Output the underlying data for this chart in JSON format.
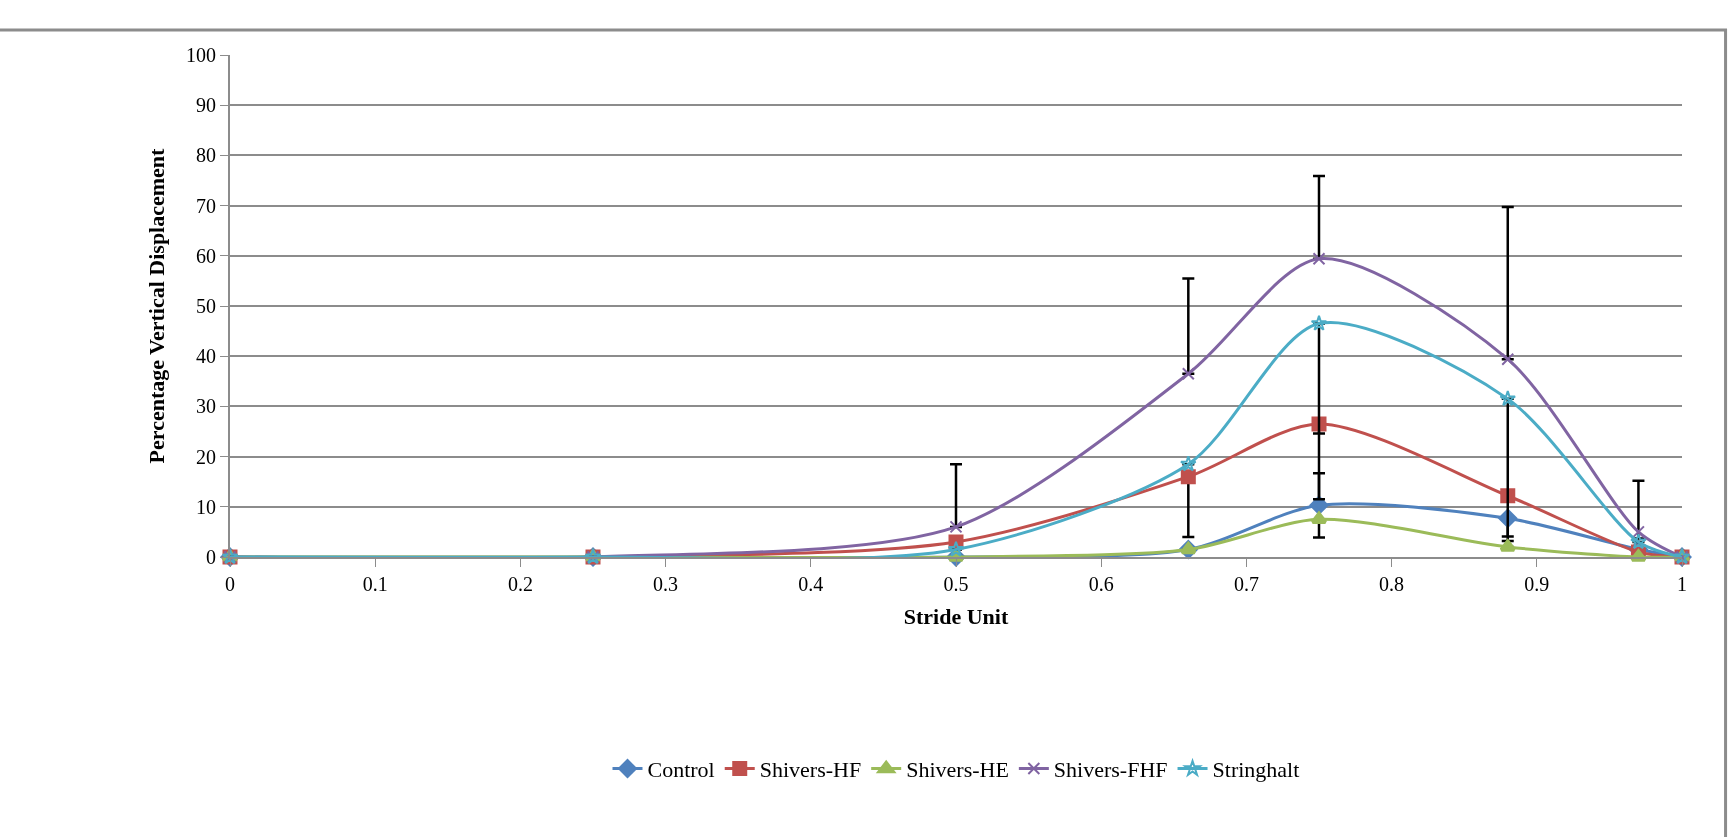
{
  "chart_data": {
    "type": "line",
    "xlabel": "Stride Unit",
    "ylabel": "Percentage Vertical Displacement",
    "x": [
      0,
      0.25,
      0.5,
      0.66,
      0.75,
      0.88,
      0.97,
      1
    ],
    "xlim": [
      0,
      1
    ],
    "xticks": [
      0,
      0.1,
      0.2,
      0.3,
      0.4,
      0.5,
      0.6,
      0.7,
      0.8,
      0.9,
      1
    ],
    "ylim": [
      0,
      100
    ],
    "yticks": [
      0,
      10,
      20,
      30,
      40,
      50,
      60,
      70,
      80,
      90,
      100
    ],
    "grid": "y",
    "legend": "bottom",
    "line_style": "solid",
    "series": [
      {
        "name": "Control",
        "color": "#4f81bd",
        "marker": "diamond",
        "values": [
          0,
          0,
          0,
          1.5,
          10.3,
          7.7,
          1.5,
          0
        ],
        "errors": [
          null,
          null,
          null,
          null,
          [
            10.3,
            16.7
          ],
          [
            3.2,
            7.7
          ],
          null,
          null
        ]
      },
      {
        "name": "Shivers-HF",
        "color": "#c0504d",
        "marker": "square",
        "values": [
          0,
          0,
          3,
          16,
          26.5,
          12.2,
          1,
          0
        ],
        "errors": [
          null,
          null,
          null,
          [
            4,
            16
          ],
          [
            11.5,
            26.5
          ],
          null,
          null,
          null
        ]
      },
      {
        "name": "Shivers-HE",
        "color": "#9bbb59",
        "marker": "triangle",
        "values": [
          0,
          0,
          0,
          1.5,
          7.5,
          2,
          0,
          0
        ],
        "errors": [
          null,
          null,
          null,
          null,
          [
            3.9,
            7.5
          ],
          null,
          null,
          null
        ]
      },
      {
        "name": "Shivers-FHF",
        "color": "#8064a2",
        "marker": "cross",
        "values": [
          0,
          0,
          6,
          36.5,
          59.4,
          39.4,
          5,
          0
        ],
        "errors": [
          null,
          null,
          [
            6,
            18.5
          ],
          [
            36.5,
            55.5
          ],
          [
            59.4,
            75.9
          ],
          [
            39.4,
            69.7
          ],
          [
            3.7,
            15.2
          ],
          null
        ]
      },
      {
        "name": "Stringhalt",
        "color": "#4bacc6",
        "marker": "star",
        "values": [
          0,
          0,
          1.5,
          18.5,
          46.5,
          31.5,
          3,
          0
        ],
        "errors": [
          null,
          null,
          null,
          null,
          [
            24.6,
            46.5
          ],
          [
            4.1,
            31.5
          ],
          null,
          null
        ]
      }
    ]
  }
}
